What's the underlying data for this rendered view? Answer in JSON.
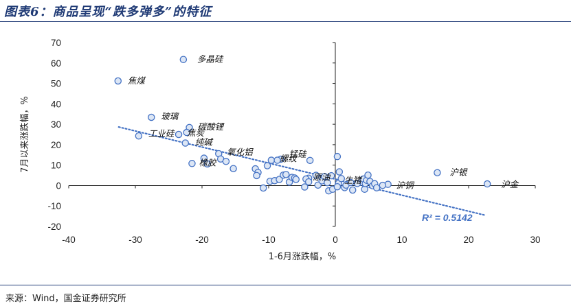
{
  "page": {
    "title": "图表6：商品呈现“跌多弹多”的特征",
    "source": "来源：Wind，国金证券研究所"
  },
  "colors": {
    "marker_fill": "#dce6f5",
    "marker_edge": "#4472c4",
    "trendline": "#4472c4",
    "title": "#1f3a75"
  },
  "chart_data": {
    "type": "scatter",
    "title": "",
    "xlabel": "1-6月涨跌幅，%",
    "ylabel": "7月以来涨跌幅，%",
    "xlim": [
      -40,
      30
    ],
    "ylim": [
      -20,
      70
    ],
    "xticks": [
      -40,
      -30,
      -20,
      -10,
      0,
      10,
      20,
      30
    ],
    "yticks": [
      -20,
      -10,
      0,
      10,
      20,
      30,
      40,
      50,
      60,
      70
    ],
    "grid": false,
    "legend": "none",
    "trendline": {
      "type": "linear",
      "x_range": [
        -32.5,
        22.5
      ],
      "r2_label": "R² = 0.5142"
    },
    "labeled_points": [
      {
        "label": "多晶硅",
        "x": -22.8,
        "y": 61.7
      },
      {
        "label": "焦煤",
        "x": -32.6,
        "y": 51.2
      },
      {
        "label": "玻璃",
        "x": -27.6,
        "y": 33.4
      },
      {
        "label": "碳酸锂",
        "x": -21.9,
        "y": 28.4
      },
      {
        "label": "焦炭",
        "x": -23.5,
        "y": 25.0
      },
      {
        "label": "工业硅",
        "x": -29.5,
        "y": 24.3
      },
      {
        "label": "纯碱",
        "x": -22.5,
        "y": 20.8
      },
      {
        "label": "氧化铝",
        "x": -17.5,
        "y": 15.6
      },
      {
        "label": "锰硅",
        "x": -8.2,
        "y": 12.9
      },
      {
        "label": "螺纹",
        "x": -9.6,
        "y": 12.4
      },
      {
        "label": "橡胶",
        "x": -21.5,
        "y": 10.8
      },
      {
        "label": "沪银",
        "x": 15.3,
        "y": 6.3
      },
      {
        "label": "沪金",
        "x": 22.8,
        "y": 0.8
      },
      {
        "label": "沪铜",
        "x": 7.9,
        "y": 0.6
      },
      {
        "label": "原油",
        "x": -4.0,
        "y": 3.6
      },
      {
        "label": "生猪",
        "x": 0.5,
        "y": 1.2
      }
    ],
    "other_points": [
      {
        "x": -22.3,
        "y": 26.0
      },
      {
        "x": -19.7,
        "y": 13.4
      },
      {
        "x": -19.2,
        "y": 10.6
      },
      {
        "x": -17.2,
        "y": 13.0
      },
      {
        "x": -16.4,
        "y": 11.8
      },
      {
        "x": -15.3,
        "y": 8.3
      },
      {
        "x": -12.0,
        "y": 8.2
      },
      {
        "x": -11.6,
        "y": 6.4
      },
      {
        "x": -11.8,
        "y": 4.9
      },
      {
        "x": -10.8,
        "y": -1.2
      },
      {
        "x": -10.2,
        "y": 9.7
      },
      {
        "x": -9.8,
        "y": 2.1
      },
      {
        "x": -9.1,
        "y": 2.4
      },
      {
        "x": -8.7,
        "y": 12.4
      },
      {
        "x": -8.4,
        "y": 3.0
      },
      {
        "x": -7.8,
        "y": 5.1
      },
      {
        "x": -7.4,
        "y": 5.4
      },
      {
        "x": -6.9,
        "y": 1.7
      },
      {
        "x": -6.5,
        "y": 4.0
      },
      {
        "x": -6.1,
        "y": 3.7
      },
      {
        "x": -5.9,
        "y": 3.0
      },
      {
        "x": -4.6,
        "y": -0.7
      },
      {
        "x": -4.4,
        "y": 3.2
      },
      {
        "x": -4.0,
        "y": 1.8
      },
      {
        "x": -3.8,
        "y": 12.3
      },
      {
        "x": -2.9,
        "y": 5.0
      },
      {
        "x": -2.6,
        "y": 0.2
      },
      {
        "x": -2.0,
        "y": 2.3
      },
      {
        "x": -1.6,
        "y": 4.4
      },
      {
        "x": -1.2,
        "y": 1.4
      },
      {
        "x": -1.0,
        "y": -2.6
      },
      {
        "x": -0.6,
        "y": 4.8
      },
      {
        "x": -0.4,
        "y": -1.8
      },
      {
        "x": 0.3,
        "y": 14.2
      },
      {
        "x": 0.6,
        "y": 6.7
      },
      {
        "x": 0.3,
        "y": -0.6
      },
      {
        "x": 0.9,
        "y": 3.4
      },
      {
        "x": 1.4,
        "y": -1.0
      },
      {
        "x": 1.6,
        "y": 0.2
      },
      {
        "x": 2.3,
        "y": 1.5
      },
      {
        "x": 2.6,
        "y": -2.2
      },
      {
        "x": 3.3,
        "y": 1.0
      },
      {
        "x": 4.2,
        "y": 3.2
      },
      {
        "x": 4.4,
        "y": -1.8
      },
      {
        "x": 4.5,
        "y": 1.0
      },
      {
        "x": 4.7,
        "y": 2.6
      },
      {
        "x": 4.9,
        "y": 5.1
      },
      {
        "x": 5.2,
        "y": 2.0
      },
      {
        "x": 5.6,
        "y": -0.1
      },
      {
        "x": 5.9,
        "y": 0.9
      },
      {
        "x": 6.2,
        "y": -1.1
      },
      {
        "x": 7.1,
        "y": 0.1
      }
    ]
  }
}
